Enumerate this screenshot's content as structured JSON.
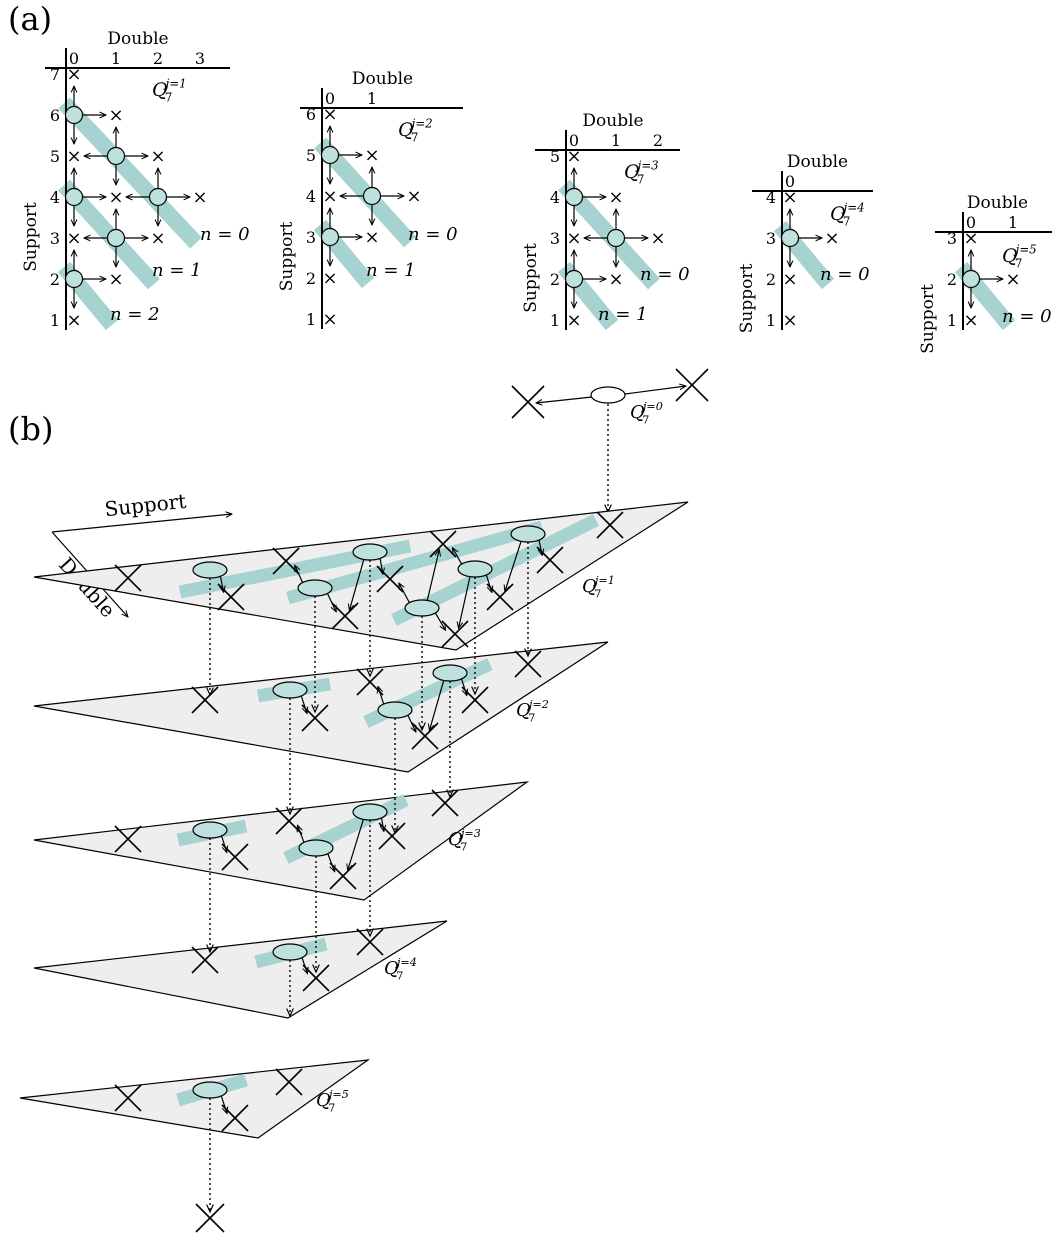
{
  "panel_labels": {
    "a": "(a)",
    "b": "(b)"
  },
  "axis_labels": {
    "double": "Double",
    "support": "Support"
  },
  "symbols": {
    "Q": "Q",
    "sub": "7",
    "j": "j",
    "n": "n"
  },
  "colors": {
    "band": "#a6d3d0",
    "node_fill": "#bfe1de",
    "plane_fill": "#eeeeee",
    "line": "#000000"
  },
  "panel_a": {
    "grids": [
      {
        "j": 1,
        "double_ticks": [
          "0",
          "1",
          "2",
          "3"
        ],
        "support_ticks": [
          "7",
          "6",
          "5",
          "4",
          "3",
          "2",
          "1"
        ],
        "n_labels": [
          "n = 0",
          "n = 1",
          "n = 2"
        ]
      },
      {
        "j": 2,
        "double_ticks": [
          "0",
          "1"
        ],
        "support_ticks": [
          "6",
          "5",
          "4",
          "3",
          "2",
          "1"
        ],
        "n_labels": [
          "n = 0",
          "n = 1"
        ]
      },
      {
        "j": 3,
        "double_ticks": [
          "0",
          "1",
          "2"
        ],
        "support_ticks": [
          "5",
          "4",
          "3",
          "2",
          "1"
        ],
        "n_labels": [
          "n = 0",
          "n = 1"
        ]
      },
      {
        "j": 4,
        "double_ticks": [
          "0"
        ],
        "support_ticks": [
          "4",
          "3",
          "2",
          "1"
        ],
        "n_labels": [
          "n = 0"
        ]
      },
      {
        "j": 5,
        "double_ticks": [
          "0",
          "1"
        ],
        "support_ticks": [
          "3",
          "2",
          "1"
        ],
        "n_labels": [
          "n = 0"
        ]
      }
    ]
  },
  "panel_b": {
    "planes": [
      {
        "label_j": "j=0"
      },
      {
        "label_j": "j=1"
      },
      {
        "label_j": "j=2"
      },
      {
        "label_j": "j=3"
      },
      {
        "label_j": "j=4"
      },
      {
        "label_j": "j=5"
      }
    ]
  }
}
